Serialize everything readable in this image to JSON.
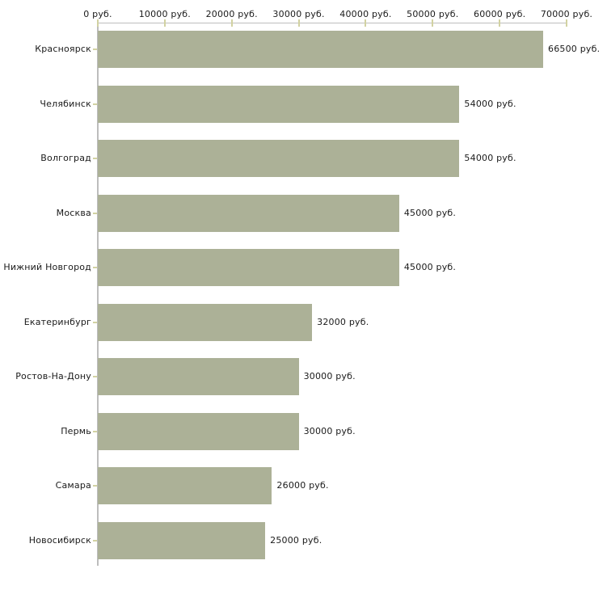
{
  "chart_data": {
    "type": "bar",
    "orientation": "horizontal",
    "title": "",
    "unit": "руб.",
    "categories": [
      "Красноярск",
      "Челябинск",
      "Волгоград",
      "Москва",
      "Нижний Новгород",
      "Екатеринбург",
      "Ростов-На-Дону",
      "Пермь",
      "Самара",
      "Новосибирск"
    ],
    "values": [
      66500,
      54000,
      54000,
      45000,
      45000,
      32000,
      30000,
      30000,
      26000,
      25000
    ],
    "value_labels": [
      "66500 руб.",
      "54000 руб.",
      "54000 руб.",
      "45000 руб.",
      "45000 руб.",
      "32000 руб.",
      "30000 руб.",
      "30000 руб.",
      "26000 руб.",
      "25000 руб."
    ],
    "x_tick_labels": [
      "0 руб.",
      "10000 руб.",
      "20000 руб.",
      "30000 руб.",
      "40000 руб.",
      "50000 руб.",
      "60000 руб.",
      "70000 руб."
    ],
    "xlim": [
      0,
      70000
    ],
    "grid": false,
    "legend": null,
    "colors": {
      "bar": "#acb197",
      "axis": "#bdbdbd",
      "tick": "#d2d2a2",
      "text": "#1a1a1a",
      "background": "#ffffff"
    }
  }
}
